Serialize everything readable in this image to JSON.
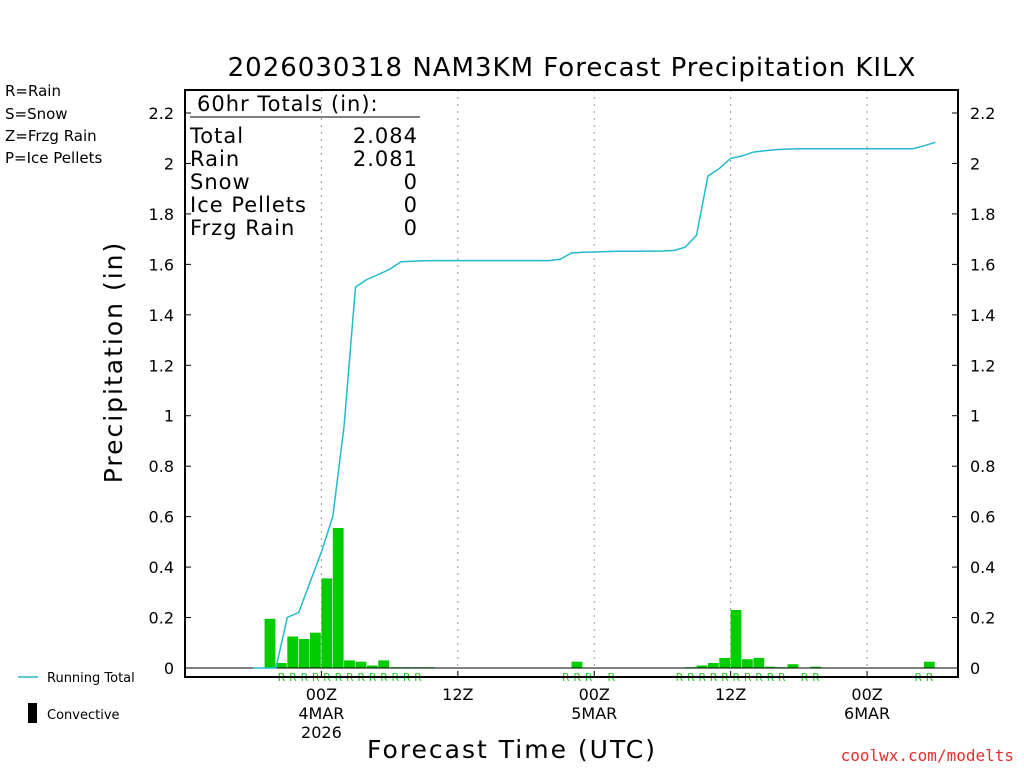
{
  "legend": {
    "types": [
      {
        "label": "R=Rain",
        "color": "#22cc22"
      },
      {
        "label": "S=Snow",
        "color": "#3355dd"
      },
      {
        "label": "Z=Frzg Rain",
        "color": "#ee8833"
      },
      {
        "label": "P=Ice Pellets",
        "color": "#dd2288"
      }
    ],
    "running_total": "Running Total",
    "convective": "Convective"
  },
  "totals": {
    "header": "60hr Totals (in):",
    "rows": [
      {
        "label": "Total",
        "value": "2.084"
      },
      {
        "label": "Rain",
        "value": "2.081"
      },
      {
        "label": "Snow",
        "value": "0"
      },
      {
        "label": "Ice Pellets",
        "value": "0"
      },
      {
        "label": "Frzg Rain",
        "value": "0"
      }
    ]
  },
  "credit": "coolwx.com/modelts",
  "colors": {
    "bar": "#00cc00",
    "line": "#22bbcc",
    "rain_mark": "#22c922"
  },
  "chart_data": {
    "type": "bar",
    "title": "2026030318 NAM3KM Forecast Precipitation KILX",
    "xlabel": "Forecast Time (UTC)",
    "ylabel": "Precipitation (in)",
    "ylim": [
      0,
      2.2
    ],
    "xlim": [
      -6,
      62
    ],
    "x_units": "hours after 2026-03-03 18Z",
    "yticks": [
      0,
      0.2,
      0.4,
      0.6,
      0.8,
      1,
      1.2,
      1.4,
      1.6,
      1.8,
      2,
      2.2
    ],
    "ytick_labels": [
      "0",
      "0.2",
      "0.4",
      "0.6",
      "0.8",
      "1",
      "1.2",
      "1.4",
      "1.6",
      "1.8",
      "2",
      "2.2"
    ],
    "xticks": [
      {
        "x": 6,
        "lines": [
          "00Z",
          "4MAR",
          "2026"
        ]
      },
      {
        "x": 18,
        "lines": [
          "12Z"
        ]
      },
      {
        "x": 30,
        "lines": [
          "00Z",
          "5MAR"
        ]
      },
      {
        "x": 42,
        "lines": [
          "12Z"
        ]
      },
      {
        "x": 54,
        "lines": [
          "00Z",
          "6MAR"
        ]
      }
    ],
    "grid_x": [
      6,
      18,
      30,
      42,
      54
    ],
    "hourly_precip": {
      "hours": [
        2,
        3,
        4,
        5,
        6,
        7,
        8,
        9,
        10,
        11,
        12,
        13,
        14,
        15,
        16,
        29,
        39,
        40,
        41,
        42,
        43,
        44,
        45,
        46,
        47,
        48,
        50,
        60
      ],
      "values": [
        0.195,
        0.02,
        0.125,
        0.115,
        0.14,
        0.355,
        0.555,
        0.03,
        0.025,
        0.01,
        0.03,
        0.003,
        0.003,
        0.003,
        0.003,
        0.025,
        0.003,
        0.01,
        0.02,
        0.04,
        0.23,
        0.035,
        0.04,
        0.005,
        0.003,
        0.015,
        0.005,
        0.025
      ]
    },
    "running_total": {
      "hours": [
        0,
        1,
        2,
        3,
        4,
        5,
        6,
        7,
        8,
        9,
        10,
        11,
        12,
        13,
        14,
        15,
        16,
        17,
        18,
        24,
        26,
        27,
        28,
        29,
        30,
        32,
        34,
        36,
        37,
        38,
        39,
        40,
        41,
        42,
        43,
        44,
        45,
        46,
        47,
        48,
        50,
        52,
        54,
        56,
        58,
        59,
        60
      ],
      "values": [
        0,
        0,
        0,
        0.2,
        0.22,
        0.34,
        0.46,
        0.6,
        0.96,
        1.51,
        1.54,
        1.56,
        1.58,
        1.61,
        1.612,
        1.614,
        1.615,
        1.615,
        1.615,
        1.615,
        1.615,
        1.62,
        1.645,
        1.648,
        1.649,
        1.652,
        1.652,
        1.653,
        1.655,
        1.668,
        1.715,
        1.95,
        1.98,
        2.02,
        2.03,
        2.045,
        2.05,
        2.055,
        2.057,
        2.058,
        2.058,
        2.058,
        2.058,
        2.058,
        2.058,
        2.07,
        2.084
      ]
    },
    "rain_marks": {
      "label": "R",
      "hours": [
        3,
        4,
        5,
        6,
        7,
        8,
        9,
        10,
        11,
        12,
        13,
        14,
        15,
        28,
        29,
        30,
        32,
        38,
        39,
        40,
        41,
        42,
        43,
        44,
        45,
        46,
        47,
        49,
        50,
        59,
        60
      ]
    }
  }
}
